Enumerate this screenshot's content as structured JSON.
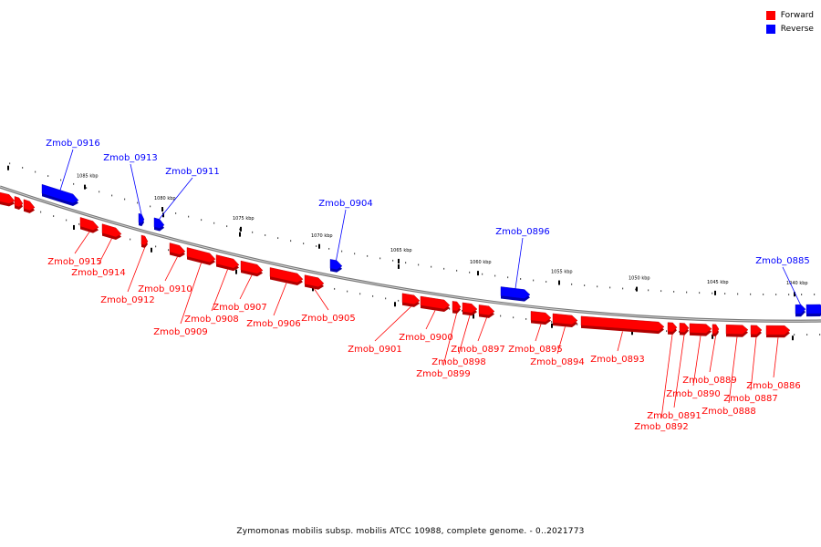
{
  "legend": {
    "forward_label": "Forward",
    "reverse_label": "Reverse",
    "forward_color": "#ff0000",
    "reverse_color": "#0000ff"
  },
  "caption": "Zymomonas mobilis subsp. mobilis ATCC 10988, complete genome. - 0..2021773",
  "ticks": [
    "1040 kbp",
    "1045 kbp",
    "1050 kbp",
    "1055 kbp",
    "1060 kbp",
    "1065 kbp",
    "1070 kbp",
    "1075 kbp",
    "1080 kbp",
    "1085 kbp"
  ],
  "genes": [
    {
      "label": "Zmob_0916",
      "strand": "reverse"
    },
    {
      "label": "Zmob_0915",
      "strand": "forward"
    },
    {
      "label": "Zmob_0914",
      "strand": "forward"
    },
    {
      "label": "Zmob_0913",
      "strand": "reverse"
    },
    {
      "label": "Zmob_0912",
      "strand": "forward"
    },
    {
      "label": "Zmob_0911",
      "strand": "reverse"
    },
    {
      "label": "Zmob_0910",
      "strand": "forward"
    },
    {
      "label": "Zmob_0909",
      "strand": "forward"
    },
    {
      "label": "Zmob_0908",
      "strand": "forward"
    },
    {
      "label": "Zmob_0907",
      "strand": "forward"
    },
    {
      "label": "Zmob_0906",
      "strand": "forward"
    },
    {
      "label": "Zmob_0905",
      "strand": "forward"
    },
    {
      "label": "Zmob_0904",
      "strand": "reverse"
    },
    {
      "label": "Zmob_0901",
      "strand": "forward"
    },
    {
      "label": "Zmob_0900",
      "strand": "forward"
    },
    {
      "label": "Zmob_0899",
      "strand": "forward"
    },
    {
      "label": "Zmob_0898",
      "strand": "forward"
    },
    {
      "label": "Zmob_0897",
      "strand": "forward"
    },
    {
      "label": "Zmob_0896",
      "strand": "reverse"
    },
    {
      "label": "Zmob_0895",
      "strand": "forward"
    },
    {
      "label": "Zmob_0894",
      "strand": "forward"
    },
    {
      "label": "Zmob_0893",
      "strand": "forward"
    },
    {
      "label": "Zmob_0892",
      "strand": "forward"
    },
    {
      "label": "Zmob_0891",
      "strand": "forward"
    },
    {
      "label": "Zmob_0890",
      "strand": "forward"
    },
    {
      "label": "Zmob_0889",
      "strand": "forward"
    },
    {
      "label": "Zmob_0888",
      "strand": "forward"
    },
    {
      "label": "Zmob_0887",
      "strand": "forward"
    },
    {
      "label": "Zmob_0886",
      "strand": "forward"
    },
    {
      "label": "Zmob_0885",
      "strand": "reverse"
    }
  ]
}
